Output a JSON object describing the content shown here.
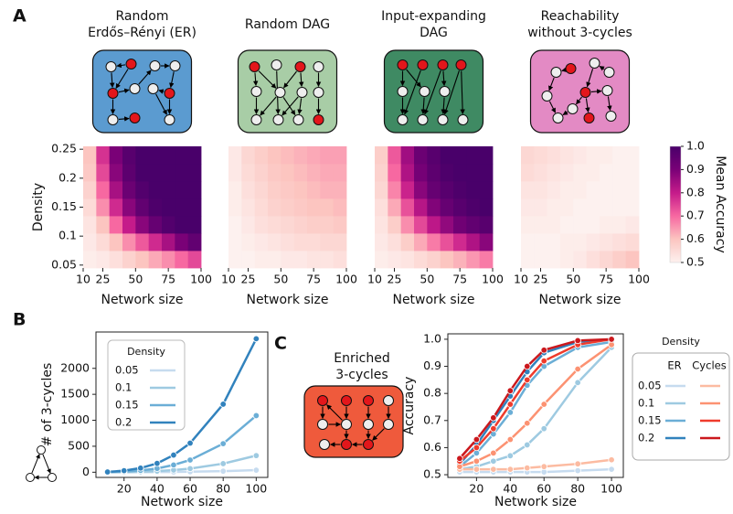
{
  "panel_labels": [
    "A",
    "B",
    "C"
  ],
  "colorbar": {
    "label": "Mean Accuracy",
    "lim": [
      0.5,
      1
    ],
    "ticks": [
      0.5,
      0.6,
      0.7,
      0.8,
      0.9,
      {
        "value": 1,
        "label": "1.0"
      }
    ],
    "colormap": [
      "#fdf1ef",
      "#fcc5c0",
      "#f768a1",
      "#c51b8a",
      "#7a0177",
      "#49006a"
    ]
  },
  "enriched_icon_title": [
    "Enriched",
    "3-cycles"
  ],
  "chart_data": [
    {
      "type": "heatmap",
      "title": [
        "Random",
        "Erdős–Rényi (ER)"
      ],
      "xlabel": "Network size",
      "ylabel": "Density",
      "x": [
        15,
        25,
        35,
        45,
        55,
        65,
        75,
        85,
        95
      ],
      "y": [
        0.06,
        0.09,
        0.12,
        0.15,
        0.18,
        0.21,
        0.24
      ],
      "xlim": [
        10,
        100
      ],
      "ylim": [
        0.045,
        0.255
      ],
      "xticks": [
        10,
        25,
        50,
        75,
        100
      ],
      "yticks": [
        0.05,
        0.1,
        0.15,
        0.2,
        0.25
      ],
      "z": [
        [
          0.51,
          0.52,
          0.54,
          0.57,
          0.6,
          0.63,
          0.66,
          0.7,
          0.74
        ],
        [
          0.52,
          0.55,
          0.6,
          0.66,
          0.72,
          0.78,
          0.84,
          0.9,
          0.95
        ],
        [
          0.53,
          0.6,
          0.7,
          0.8,
          0.88,
          0.94,
          0.98,
          1.0,
          1.0
        ],
        [
          0.55,
          0.66,
          0.78,
          0.88,
          0.95,
          0.99,
          1.0,
          1.0,
          1.0
        ],
        [
          0.57,
          0.7,
          0.84,
          0.93,
          0.98,
          1.0,
          1.0,
          1.0,
          1.0
        ],
        [
          0.59,
          0.74,
          0.88,
          0.96,
          1.0,
          1.0,
          1.0,
          1.0,
          1.0
        ],
        [
          0.6,
          0.77,
          0.9,
          0.97,
          1.0,
          1.0,
          1.0,
          1.0,
          1.0
        ]
      ]
    },
    {
      "type": "heatmap",
      "title": [
        "Random DAG"
      ],
      "xlabel": "Network size",
      "x": [
        15,
        25,
        35,
        45,
        55,
        65,
        75,
        85,
        95
      ],
      "y": [
        0.06,
        0.09,
        0.12,
        0.15,
        0.18,
        0.21,
        0.24
      ],
      "xlim": [
        10,
        100
      ],
      "ylim": [
        0.045,
        0.255
      ],
      "xticks": [
        10,
        25,
        50,
        75,
        100
      ],
      "z": [
        [
          0.5,
          0.5,
          0.51,
          0.51,
          0.52,
          0.52,
          0.53,
          0.53,
          0.54
        ],
        [
          0.5,
          0.51,
          0.52,
          0.53,
          0.54,
          0.55,
          0.55,
          0.56,
          0.56
        ],
        [
          0.5,
          0.52,
          0.54,
          0.55,
          0.56,
          0.57,
          0.58,
          0.58,
          0.59
        ],
        [
          0.51,
          0.53,
          0.55,
          0.57,
          0.58,
          0.59,
          0.6,
          0.6,
          0.61
        ],
        [
          0.51,
          0.54,
          0.56,
          0.58,
          0.59,
          0.6,
          0.61,
          0.62,
          0.62
        ],
        [
          0.52,
          0.55,
          0.57,
          0.59,
          0.6,
          0.61,
          0.62,
          0.63,
          0.63
        ],
        [
          0.52,
          0.56,
          0.58,
          0.6,
          0.61,
          0.62,
          0.63,
          0.64,
          0.64
        ]
      ]
    },
    {
      "type": "heatmap",
      "title": [
        "Input-expanding",
        "DAG"
      ],
      "xlabel": "Network size",
      "x": [
        15,
        25,
        35,
        45,
        55,
        65,
        75,
        85,
        95
      ],
      "y": [
        0.06,
        0.09,
        0.12,
        0.15,
        0.18,
        0.21,
        0.24
      ],
      "xlim": [
        10,
        100
      ],
      "ylim": [
        0.045,
        0.255
      ],
      "xticks": [
        10,
        25,
        50,
        75,
        100
      ],
      "z": [
        [
          0.51,
          0.52,
          0.53,
          0.55,
          0.57,
          0.6,
          0.62,
          0.65,
          0.68
        ],
        [
          0.52,
          0.54,
          0.58,
          0.63,
          0.68,
          0.73,
          0.78,
          0.83,
          0.88
        ],
        [
          0.53,
          0.58,
          0.66,
          0.74,
          0.81,
          0.87,
          0.92,
          0.95,
          0.97
        ],
        [
          0.54,
          0.63,
          0.73,
          0.82,
          0.89,
          0.94,
          0.97,
          0.99,
          1.0
        ],
        [
          0.56,
          0.67,
          0.79,
          0.88,
          0.94,
          0.97,
          0.99,
          1.0,
          1.0
        ],
        [
          0.57,
          0.7,
          0.83,
          0.91,
          0.96,
          0.99,
          1.0,
          1.0,
          1.0
        ],
        [
          0.58,
          0.72,
          0.85,
          0.93,
          0.97,
          1.0,
          1.0,
          1.0,
          1.0
        ]
      ]
    },
    {
      "type": "heatmap",
      "title": [
        "Reachability",
        "without 3-cycles"
      ],
      "xlabel": "Network size",
      "x": [
        15,
        25,
        35,
        45,
        55,
        65,
        75,
        85,
        95
      ],
      "y": [
        0.06,
        0.09,
        0.12,
        0.15,
        0.18,
        0.21,
        0.24
      ],
      "xlim": [
        10,
        100
      ],
      "ylim": [
        0.045,
        0.255
      ],
      "xticks": [
        10,
        25,
        50,
        75,
        100
      ],
      "z": [
        [
          0.5,
          0.5,
          0.5,
          0.51,
          0.52,
          0.54,
          0.56,
          0.58,
          0.6
        ],
        [
          0.5,
          0.5,
          0.5,
          0.51,
          0.51,
          0.52,
          0.53,
          0.54,
          0.55
        ],
        [
          0.51,
          0.51,
          0.51,
          0.5,
          0.5,
          0.5,
          0.51,
          0.51,
          0.52
        ],
        [
          0.52,
          0.52,
          0.51,
          0.51,
          0.5,
          0.5,
          0.5,
          0.5,
          0.5
        ],
        [
          0.53,
          0.53,
          0.52,
          0.51,
          0.51,
          0.5,
          0.5,
          0.5,
          0.5
        ],
        [
          0.55,
          0.54,
          0.53,
          0.52,
          0.51,
          0.51,
          0.5,
          0.5,
          0.5
        ],
        [
          0.56,
          0.55,
          0.54,
          0.53,
          0.52,
          0.51,
          0.51,
          0.5,
          0.5
        ]
      ]
    },
    {
      "type": "line",
      "xlabel": "Network size",
      "ylabel": "# of 3-cycles",
      "legend_title": "Density",
      "legend": "upper left",
      "x": [
        10,
        20,
        30,
        40,
        50,
        60,
        80,
        100
      ],
      "xlim": [
        3,
        107
      ],
      "ylim": [
        -100,
        2700
      ],
      "xticks": [
        20,
        40,
        60,
        80,
        100
      ],
      "yticks": [
        0,
        500,
        1000,
        1500,
        2000
      ],
      "series": [
        {
          "name": "0.05",
          "color": "#c6dbef",
          "values": [
            0,
            0,
            1,
            3,
            5,
            9,
            20,
            40
          ]
        },
        {
          "name": "0.1",
          "color": "#9ecae1",
          "values": [
            1,
            4,
            10,
            21,
            42,
            70,
            165,
            320
          ]
        },
        {
          "name": "0.15",
          "color": "#6baed6",
          "values": [
            2,
            12,
            35,
            72,
            140,
            235,
            550,
            1090
          ]
        },
        {
          "name": "0.2",
          "color": "#3182bd",
          "values": [
            5,
            30,
            80,
            170,
            330,
            560,
            1310,
            2570
          ]
        }
      ]
    },
    {
      "type": "line",
      "xlabel": "Network size",
      "ylabel": "Accuracy",
      "legend_title": "Density",
      "legend": "outside right",
      "densities": [
        "0.05",
        "0.1",
        "0.15",
        "0.2"
      ],
      "x": [
        10,
        20,
        30,
        40,
        50,
        60,
        80,
        100
      ],
      "xlim": [
        3,
        107
      ],
      "ylim": [
        0.49,
        1.02
      ],
      "xticks": [
        20,
        40,
        60,
        80,
        100
      ],
      "yticks": [
        0.5,
        0.6,
        0.7,
        0.8,
        0.9,
        {
          "value": 1,
          "label": "1.0"
        }
      ],
      "series": [
        {
          "name": "ER",
          "colors": [
            "#c6dbef",
            "#9ecae1",
            "#6baed6",
            "#3182bd"
          ],
          "values": [
            [
              0.51,
              0.51,
              0.51,
              0.51,
              0.51,
              0.51,
              0.515,
              0.52
            ],
            [
              0.52,
              0.53,
              0.55,
              0.57,
              0.61,
              0.67,
              0.84,
              0.97
            ],
            [
              0.53,
              0.58,
              0.65,
              0.73,
              0.83,
              0.9,
              0.97,
              0.99
            ],
            [
              0.54,
              0.61,
              0.7,
              0.79,
              0.88,
              0.95,
              0.99,
              1.0
            ]
          ]
        },
        {
          "name": "Cycles",
          "colors": [
            "#fcbba1",
            "#fc9272",
            "#ef3b2c",
            "#cb181d"
          ],
          "values": [
            [
              0.52,
              0.52,
              0.52,
              0.52,
              0.525,
              0.53,
              0.54,
              0.555
            ],
            [
              0.53,
              0.55,
              0.58,
              0.63,
              0.69,
              0.76,
              0.89,
              0.98
            ],
            [
              0.55,
              0.6,
              0.67,
              0.76,
              0.85,
              0.92,
              0.98,
              1.0
            ],
            [
              0.56,
              0.63,
              0.71,
              0.81,
              0.9,
              0.96,
              0.995,
              1.0
            ]
          ]
        }
      ]
    }
  ]
}
